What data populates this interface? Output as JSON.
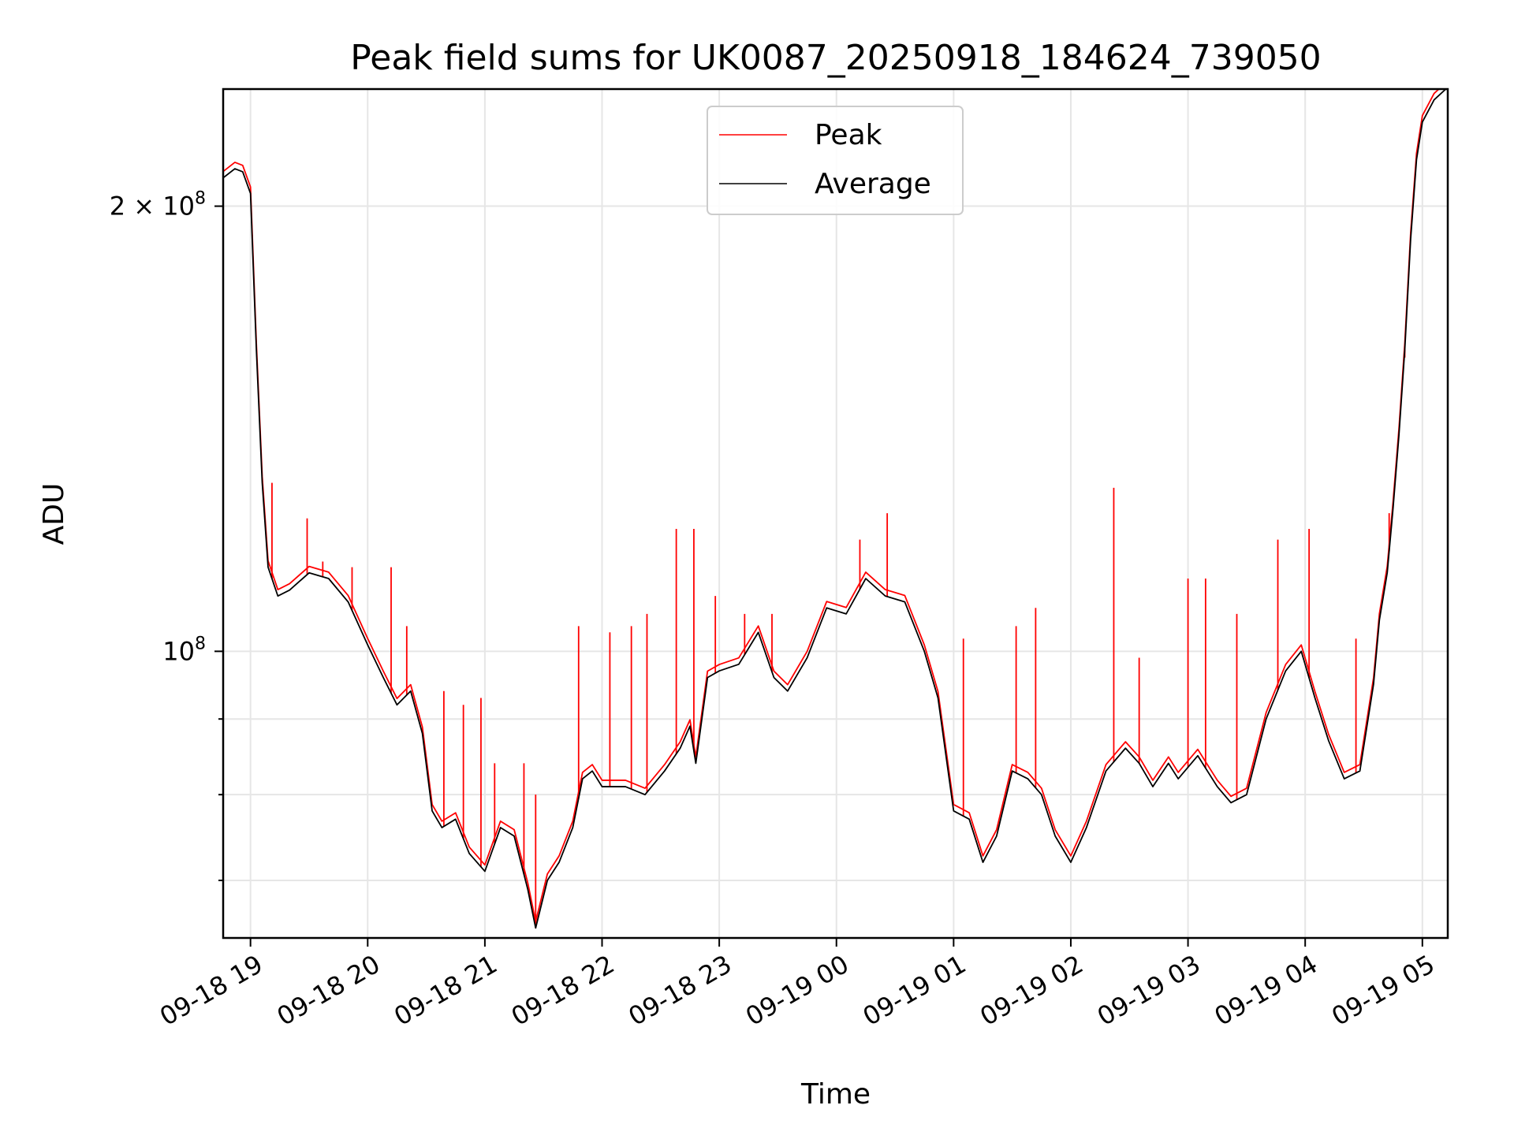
{
  "chart_data": {
    "type": "line",
    "title": "Peak field sums for UK0087_20250918_184624_739050",
    "xlabel": "Time",
    "ylabel": "ADU",
    "y_scale": "log",
    "ylim": [
      64000000,
      240000000
    ],
    "xlim": [
      "2025-09-18T18:46",
      "2025-09-19T05:13"
    ],
    "x_ticks": [
      {
        "t": "2025-09-18T19:00",
        "label": "09-18 19"
      },
      {
        "t": "2025-09-18T20:00",
        "label": "09-18 20"
      },
      {
        "t": "2025-09-18T21:00",
        "label": "09-18 21"
      },
      {
        "t": "2025-09-18T22:00",
        "label": "09-18 22"
      },
      {
        "t": "2025-09-18T23:00",
        "label": "09-18 23"
      },
      {
        "t": "2025-09-19T00:00",
        "label": "09-19 00"
      },
      {
        "t": "2025-09-19T01:00",
        "label": "09-19 01"
      },
      {
        "t": "2025-09-19T02:00",
        "label": "09-19 02"
      },
      {
        "t": "2025-09-19T03:00",
        "label": "09-19 03"
      },
      {
        "t": "2025-09-19T04:00",
        "label": "09-19 04"
      },
      {
        "t": "2025-09-19T05:00",
        "label": "09-19 05"
      }
    ],
    "y_major_ticks": [
      {
        "value": 100000000,
        "base": "10",
        "exp": "8"
      },
      {
        "value": 200000000,
        "base": "2 × 10",
        "exp": "8"
      }
    ],
    "y_minor_ticks": [
      70000000,
      80000000,
      90000000
    ],
    "grid": true,
    "legend_position": "top-center",
    "series": [
      {
        "name": "Average",
        "color": "#000000",
        "points": [
          [
            "2025-09-18T18:46",
            209000000
          ],
          [
            "2025-09-18T18:52",
            212000000
          ],
          [
            "2025-09-18T18:56",
            211000000
          ],
          [
            "2025-09-18T19:00",
            204000000
          ],
          [
            "2025-09-18T19:03",
            160000000
          ],
          [
            "2025-09-18T19:06",
            130000000
          ],
          [
            "2025-09-18T19:09",
            114000000
          ],
          [
            "2025-09-18T19:14",
            109000000
          ],
          [
            "2025-09-18T19:20",
            110000000
          ],
          [
            "2025-09-18T19:30",
            113000000
          ],
          [
            "2025-09-18T19:40",
            112000000
          ],
          [
            "2025-09-18T19:50",
            108000000
          ],
          [
            "2025-09-18T20:00",
            101000000
          ],
          [
            "2025-09-18T20:08",
            96000000
          ],
          [
            "2025-09-18T20:15",
            92000000
          ],
          [
            "2025-09-18T20:22",
            94000000
          ],
          [
            "2025-09-18T20:28",
            88000000
          ],
          [
            "2025-09-18T20:33",
            78000000
          ],
          [
            "2025-09-18T20:38",
            76000000
          ],
          [
            "2025-09-18T20:45",
            77000000
          ],
          [
            "2025-09-18T20:52",
            73000000
          ],
          [
            "2025-09-18T21:00",
            71000000
          ],
          [
            "2025-09-18T21:08",
            76000000
          ],
          [
            "2025-09-18T21:15",
            75000000
          ],
          [
            "2025-09-18T21:22",
            69000000
          ],
          [
            "2025-09-18T21:26",
            65000000
          ],
          [
            "2025-09-18T21:32",
            70000000
          ],
          [
            "2025-09-18T21:38",
            72000000
          ],
          [
            "2025-09-18T21:45",
            76000000
          ],
          [
            "2025-09-18T21:50",
            82000000
          ],
          [
            "2025-09-18T21:55",
            83000000
          ],
          [
            "2025-09-18T22:00",
            81000000
          ],
          [
            "2025-09-18T22:05",
            81000000
          ],
          [
            "2025-09-18T22:12",
            81000000
          ],
          [
            "2025-09-18T22:22",
            80000000
          ],
          [
            "2025-09-18T22:32",
            83000000
          ],
          [
            "2025-09-18T22:40",
            86000000
          ],
          [
            "2025-09-18T22:45",
            89000000
          ],
          [
            "2025-09-18T22:48",
            84000000
          ],
          [
            "2025-09-18T22:54",
            96000000
          ],
          [
            "2025-09-18T23:00",
            97000000
          ],
          [
            "2025-09-18T23:10",
            98000000
          ],
          [
            "2025-09-18T23:20",
            103000000
          ],
          [
            "2025-09-18T23:28",
            96000000
          ],
          [
            "2025-09-18T23:35",
            94000000
          ],
          [
            "2025-09-18T23:45",
            99000000
          ],
          [
            "2025-09-18T23:55",
            107000000
          ],
          [
            "2025-09-19T00:05",
            106000000
          ],
          [
            "2025-09-19T00:15",
            112000000
          ],
          [
            "2025-09-19T00:25",
            109000000
          ],
          [
            "2025-09-19T00:35",
            108000000
          ],
          [
            "2025-09-19T00:45",
            100000000
          ],
          [
            "2025-09-19T00:52",
            93000000
          ],
          [
            "2025-09-19T01:00",
            78000000
          ],
          [
            "2025-09-19T01:08",
            77000000
          ],
          [
            "2025-09-19T01:15",
            72000000
          ],
          [
            "2025-09-19T01:22",
            75000000
          ],
          [
            "2025-09-19T01:30",
            83000000
          ],
          [
            "2025-09-19T01:38",
            82000000
          ],
          [
            "2025-09-19T01:45",
            80000000
          ],
          [
            "2025-09-19T01:52",
            75000000
          ],
          [
            "2025-09-19T02:00",
            72000000
          ],
          [
            "2025-09-19T02:08",
            76000000
          ],
          [
            "2025-09-19T02:18",
            83000000
          ],
          [
            "2025-09-19T02:28",
            86000000
          ],
          [
            "2025-09-19T02:35",
            84000000
          ],
          [
            "2025-09-19T02:42",
            81000000
          ],
          [
            "2025-09-19T02:50",
            84000000
          ],
          [
            "2025-09-19T02:55",
            82000000
          ],
          [
            "2025-09-19T03:05",
            85000000
          ],
          [
            "2025-09-19T03:15",
            81000000
          ],
          [
            "2025-09-19T03:22",
            79000000
          ],
          [
            "2025-09-19T03:30",
            80000000
          ],
          [
            "2025-09-19T03:40",
            90000000
          ],
          [
            "2025-09-19T03:50",
            97000000
          ],
          [
            "2025-09-19T03:58",
            100000000
          ],
          [
            "2025-09-19T04:05",
            93000000
          ],
          [
            "2025-09-19T04:12",
            87000000
          ],
          [
            "2025-09-19T04:20",
            82000000
          ],
          [
            "2025-09-19T04:28",
            83000000
          ],
          [
            "2025-09-19T04:35",
            95000000
          ],
          [
            "2025-09-19T04:38",
            105000000
          ],
          [
            "2025-09-19T04:42",
            113000000
          ],
          [
            "2025-09-19T04:45",
            125000000
          ],
          [
            "2025-09-19T04:48",
            140000000
          ],
          [
            "2025-09-19T04:51",
            160000000
          ],
          [
            "2025-09-19T04:54",
            190000000
          ],
          [
            "2025-09-19T04:57",
            215000000
          ],
          [
            "2025-09-19T05:00",
            228000000
          ],
          [
            "2025-09-19T05:06",
            236000000
          ],
          [
            "2025-09-19T05:12",
            240000000
          ]
        ]
      },
      {
        "name": "Peak",
        "color": "#ff0000",
        "spikes": [
          [
            "2025-09-18T19:11",
            130000000
          ],
          [
            "2025-09-18T19:29",
            123000000
          ],
          [
            "2025-09-18T19:37",
            115000000
          ],
          [
            "2025-09-18T19:52",
            114000000
          ],
          [
            "2025-09-18T20:12",
            114000000
          ],
          [
            "2025-09-18T20:20",
            104000000
          ],
          [
            "2025-09-18T20:39",
            94000000
          ],
          [
            "2025-09-18T20:49",
            92000000
          ],
          [
            "2025-09-18T20:58",
            93000000
          ],
          [
            "2025-09-18T21:05",
            84000000
          ],
          [
            "2025-09-18T21:20",
            84000000
          ],
          [
            "2025-09-18T21:26",
            80000000
          ],
          [
            "2025-09-18T21:48",
            104000000
          ],
          [
            "2025-09-18T22:04",
            103000000
          ],
          [
            "2025-09-18T22:15",
            104000000
          ],
          [
            "2025-09-18T22:23",
            106000000
          ],
          [
            "2025-09-18T22:38",
            121000000
          ],
          [
            "2025-09-18T22:47",
            121000000
          ],
          [
            "2025-09-18T22:58",
            109000000
          ],
          [
            "2025-09-18T23:13",
            106000000
          ],
          [
            "2025-09-18T23:27",
            106000000
          ],
          [
            "2025-09-19T00:12",
            119000000
          ],
          [
            "2025-09-19T00:26",
            124000000
          ],
          [
            "2025-09-19T01:05",
            102000000
          ],
          [
            "2025-09-19T01:32",
            104000000
          ],
          [
            "2025-09-19T01:42",
            107000000
          ],
          [
            "2025-09-19T02:22",
            129000000
          ],
          [
            "2025-09-19T02:35",
            99000000
          ],
          [
            "2025-09-19T03:00",
            112000000
          ],
          [
            "2025-09-19T03:09",
            112000000
          ],
          [
            "2025-09-19T03:25",
            106000000
          ],
          [
            "2025-09-19T03:46",
            119000000
          ],
          [
            "2025-09-19T04:02",
            121000000
          ],
          [
            "2025-09-19T04:26",
            102000000
          ],
          [
            "2025-09-19T04:43",
            124000000
          ],
          [
            "2025-09-19T04:51",
            158000000
          ]
        ]
      }
    ]
  }
}
